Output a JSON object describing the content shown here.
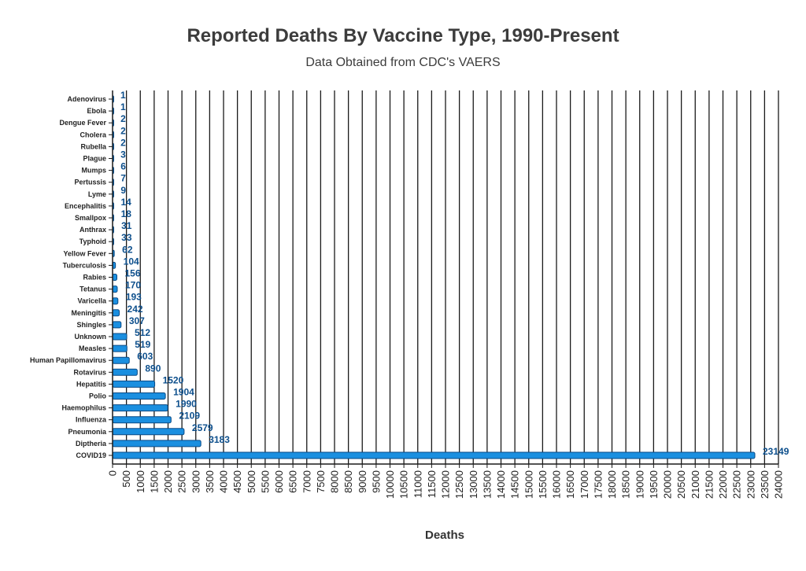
{
  "chart_data": {
    "type": "bar",
    "orientation": "horizontal",
    "title": "Reported Deaths By Vaccine Type, 1990-Present",
    "subtitle": "Data Obtained from CDC's VAERS",
    "xlabel": "Deaths",
    "ylabel": "",
    "xlim": [
      0,
      24000
    ],
    "tick_step": 500,
    "grid": "vertical",
    "bar_color": "#1a8fe0",
    "bar_stroke": "#0a4a85",
    "value_label_color": "#0d4f8c",
    "categories": [
      "Adenovirus",
      "Ebola",
      "Dengue Fever",
      "Cholera",
      "Rubella",
      "Plague",
      "Mumps",
      "Pertussis",
      "Lyme",
      "Encephalitis",
      "Smallpox",
      "Anthrax",
      "Typhoid",
      "Yellow Fever",
      "Tuberculosis",
      "Rabies",
      "Tetanus",
      "Varicella",
      "Meningitis",
      "Shingles",
      "Unknown",
      "Measles",
      "Human Papillomavirus",
      "Rotavirus",
      "Hepatitis",
      "Polio",
      "Haemophilus",
      "Influenza",
      "Pneumonia",
      "Diptheria",
      "COVID19"
    ],
    "values": [
      1,
      1,
      2,
      2,
      2,
      3,
      6,
      7,
      9,
      14,
      18,
      31,
      33,
      62,
      104,
      156,
      170,
      193,
      242,
      307,
      512,
      519,
      603,
      890,
      1520,
      1904,
      1990,
      2109,
      2579,
      3183,
      23149
    ]
  }
}
